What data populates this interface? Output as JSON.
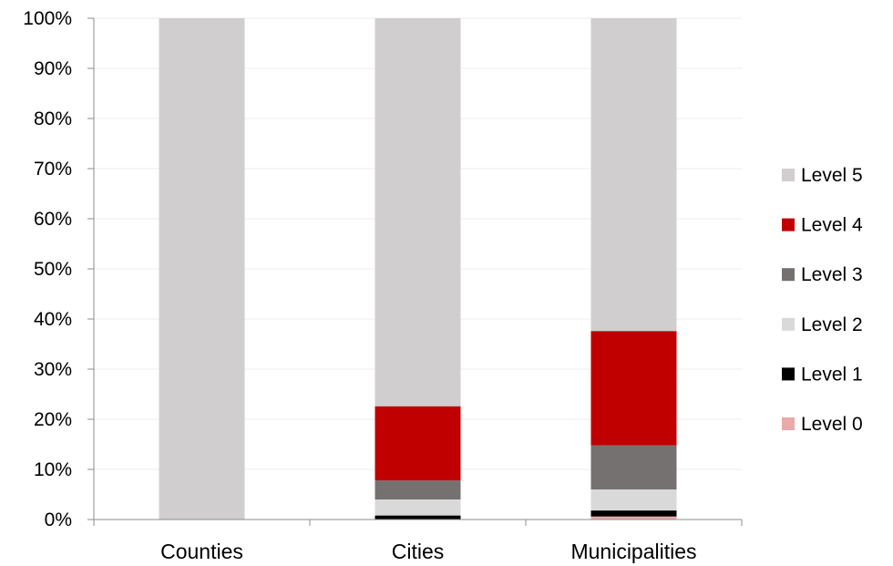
{
  "chart_data": {
    "type": "bar",
    "stacked": true,
    "percent": true,
    "categories": [
      "Counties",
      "Cities",
      "Municipalities"
    ],
    "series": [
      {
        "name": "Level 0",
        "color": "#E8AAAA",
        "values": [
          0,
          0,
          0.6
        ]
      },
      {
        "name": "Level 1",
        "color": "#000000",
        "values": [
          0,
          0.8,
          1.2
        ]
      },
      {
        "name": "Level 2",
        "color": "#D9D9D9",
        "values": [
          0,
          3.2,
          4.2
        ]
      },
      {
        "name": "Level 3",
        "color": "#767171",
        "values": [
          0,
          3.8,
          8.8
        ]
      },
      {
        "name": "Level 4",
        "color": "#C00000",
        "values": [
          0,
          14.8,
          22.8
        ]
      },
      {
        "name": "Level 5",
        "color": "#D0CECE",
        "values": [
          100,
          77.4,
          62.4
        ]
      }
    ],
    "yticks": [
      "0%",
      "10%",
      "20%",
      "30%",
      "40%",
      "50%",
      "60%",
      "70%",
      "80%",
      "90%",
      "100%"
    ],
    "ylim": [
      0,
      100
    ],
    "grid": true,
    "legend": "right",
    "legend_order": [
      "Level 5",
      "Level 4",
      "Level 3",
      "Level 2",
      "Level 1",
      "Level 0"
    ],
    "title": "",
    "xlabel": "",
    "ylabel": ""
  }
}
